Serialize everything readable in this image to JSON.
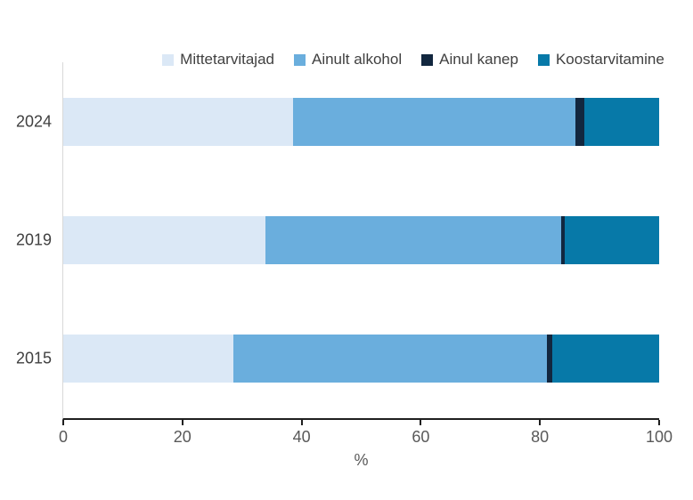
{
  "chart_data": {
    "type": "bar",
    "orientation": "horizontal",
    "stacked": true,
    "title": "",
    "categories": [
      "2024",
      "2019",
      "2015"
    ],
    "series": [
      {
        "name": "Mittetarvitajad",
        "color": "#dbe8f6",
        "values": [
          38.6,
          34.0,
          28.5
        ]
      },
      {
        "name": "Ainult alkohol",
        "color": "#6aaedd",
        "values": [
          47.4,
          49.5,
          52.7
        ]
      },
      {
        "name": "Ainul kanep",
        "color": "#12273f",
        "values": [
          1.4,
          0.7,
          0.9
        ]
      },
      {
        "name": "Koostarvitamine",
        "color": "#0779a8",
        "values": [
          12.6,
          15.8,
          17.9
        ]
      }
    ],
    "xlabel": "%",
    "ylabel": "",
    "xlim": [
      0,
      100
    ],
    "xticks": [
      "0",
      "20",
      "40",
      "60",
      "80",
      "100"
    ],
    "legend_position": "top",
    "grid": false,
    "colors": {
      "axis_line": "#1f1f1f",
      "category_axis_line": "#d9d9d9",
      "category_label_text": "#404040",
      "tick_label_text": "#595959",
      "legend_text": "#404040"
    }
  }
}
